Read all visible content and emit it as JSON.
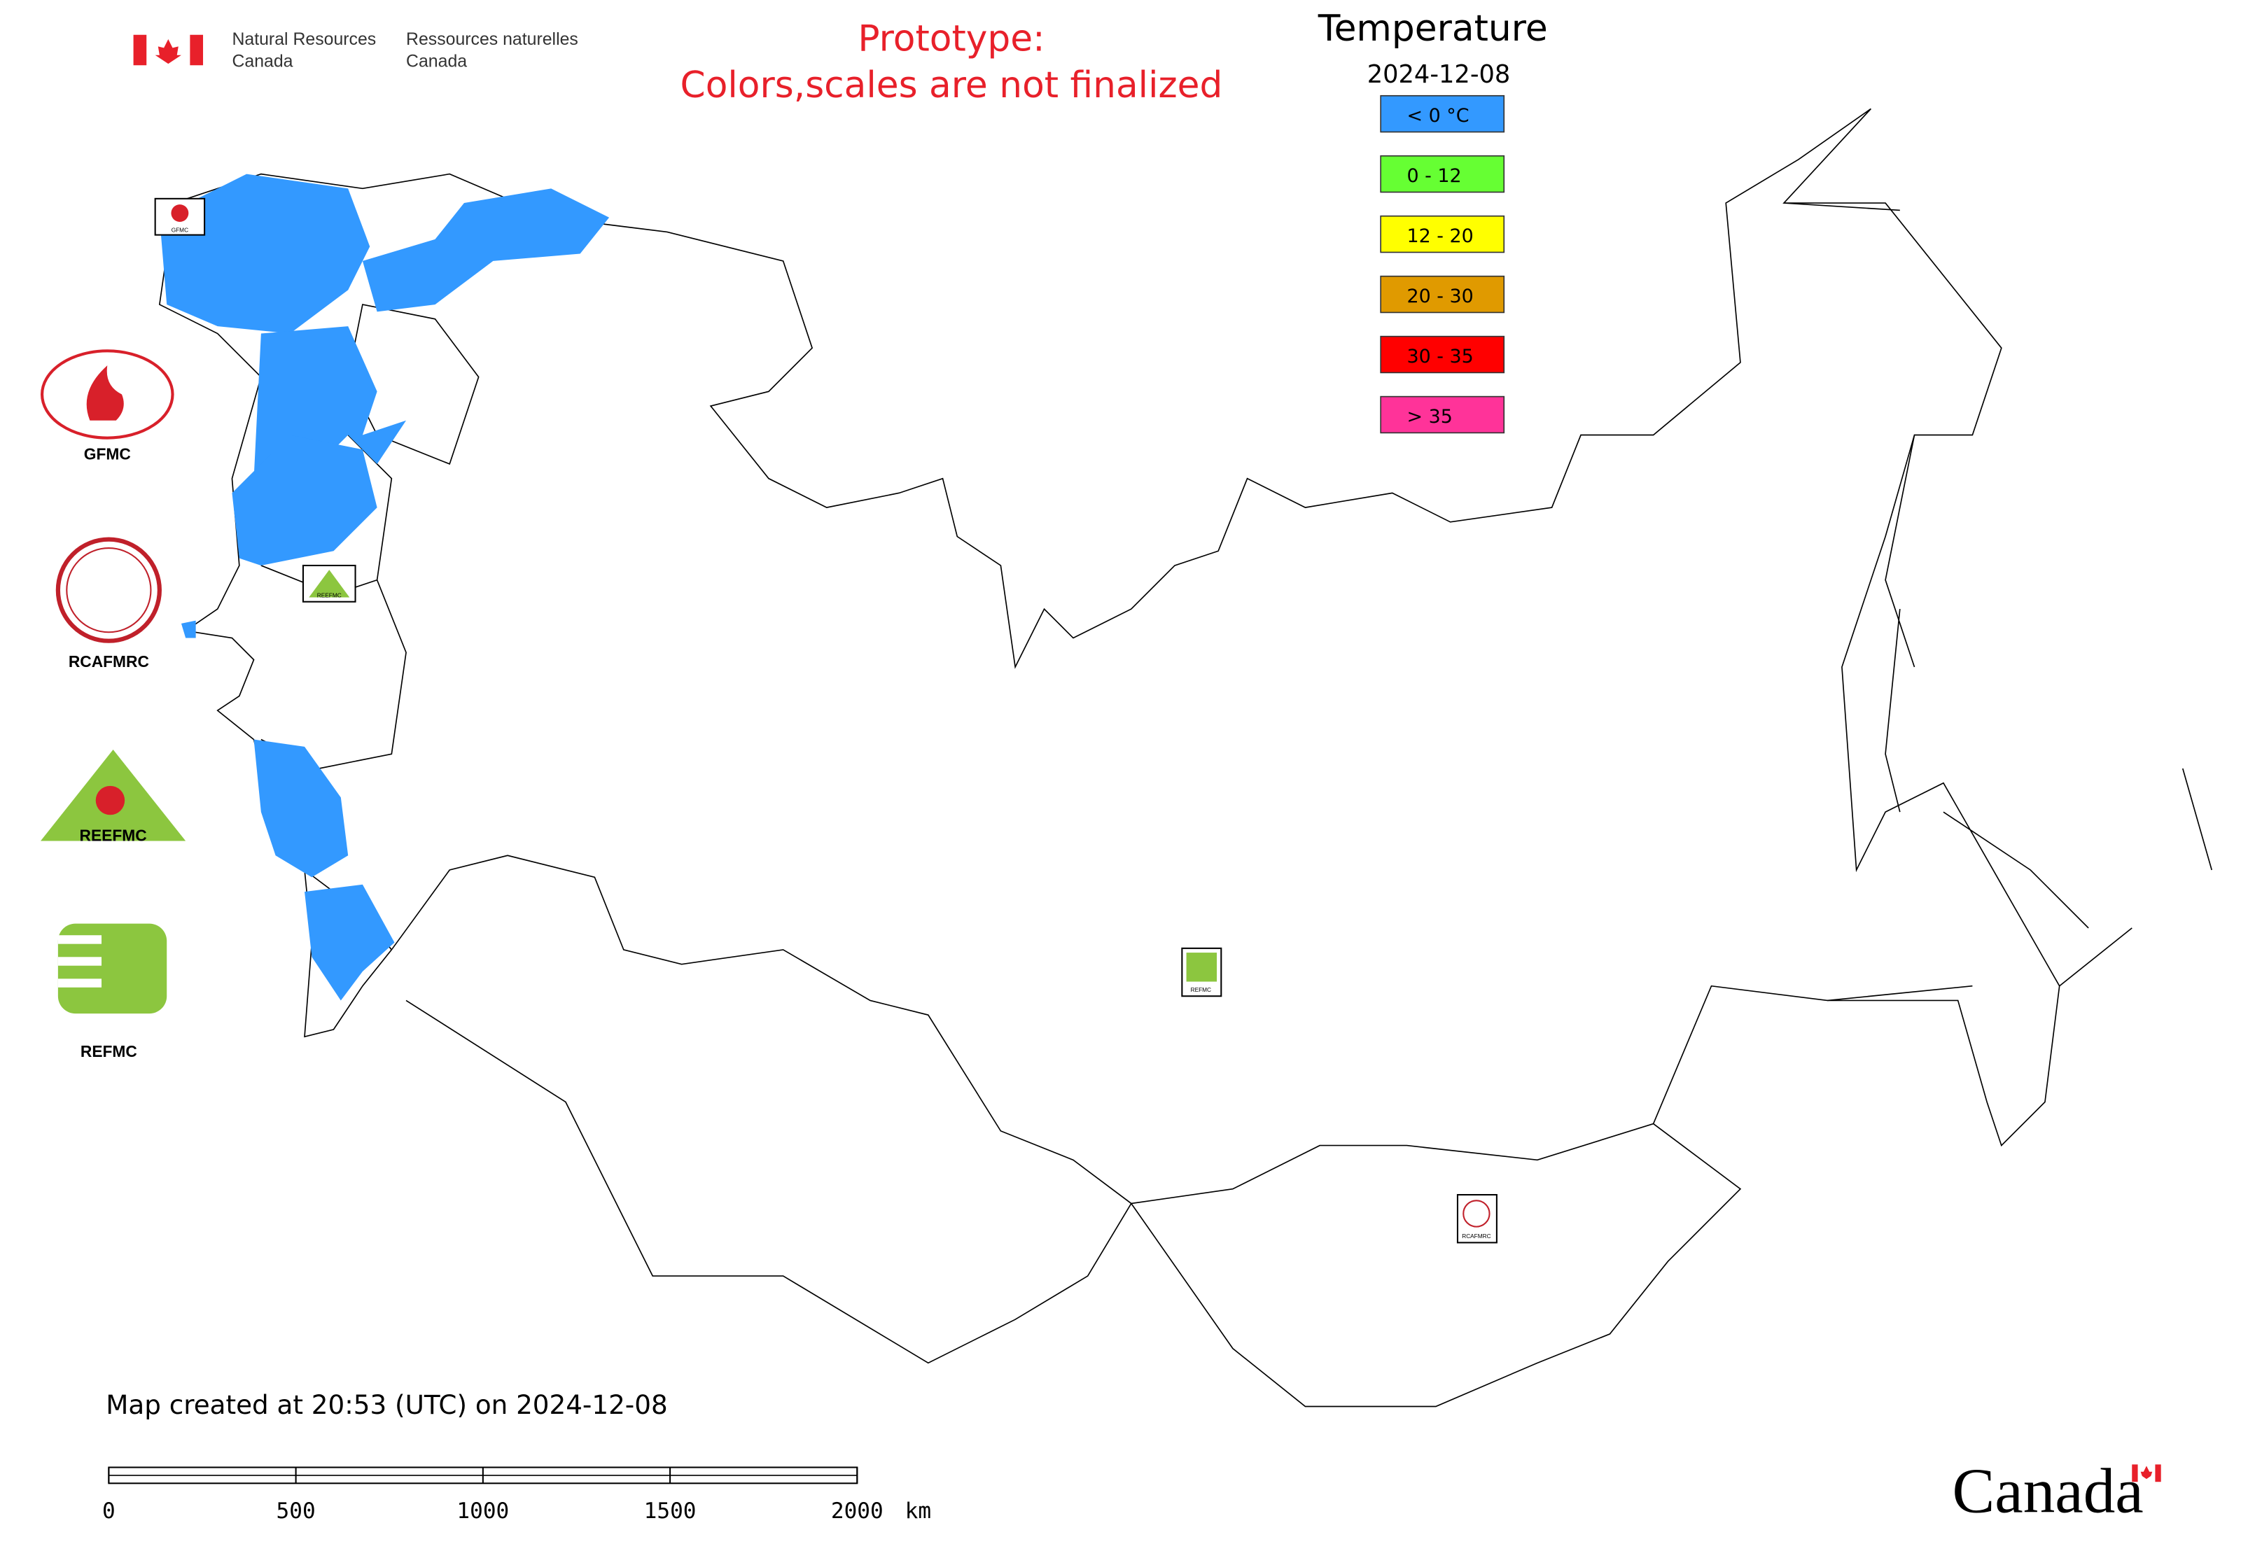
{
  "header": {
    "agency_en": [
      "Natural Resources",
      "Canada"
    ],
    "agency_fr": [
      "Ressources naturelles",
      "Canada"
    ],
    "notice": [
      "Prototype:",
      "Colors,scales are not finalized"
    ]
  },
  "legend": {
    "title": "Temperature",
    "date": "2024-12-08",
    "items": [
      {
        "label": "< 0 °C",
        "color": "#3399ff"
      },
      {
        "label": "0 - 12",
        "color": "#66ff33"
      },
      {
        "label": "12 - 20",
        "color": "#ffff00"
      },
      {
        "label": "20 - 30",
        "color": "#e09a00"
      },
      {
        "label": "30 - 35",
        "color": "#ff0000"
      },
      {
        "label": "> 35",
        "color": "#ff3399"
      }
    ]
  },
  "logos": [
    {
      "label": "GFMC"
    },
    {
      "label": "RCAFMRC"
    },
    {
      "label": "REEFMC"
    },
    {
      "label": "REFMC"
    }
  ],
  "map_markers": [
    "GFMC",
    "REEFMC",
    "REFMC",
    "RCAFMRC"
  ],
  "footer": {
    "created": "Map created at 20:53 (UTC) on 2024-12-08",
    "scale_bar": {
      "ticks": [
        0,
        500,
        1000,
        1500,
        2000
      ],
      "unit": "km"
    }
  },
  "wordmark": "Canada"
}
